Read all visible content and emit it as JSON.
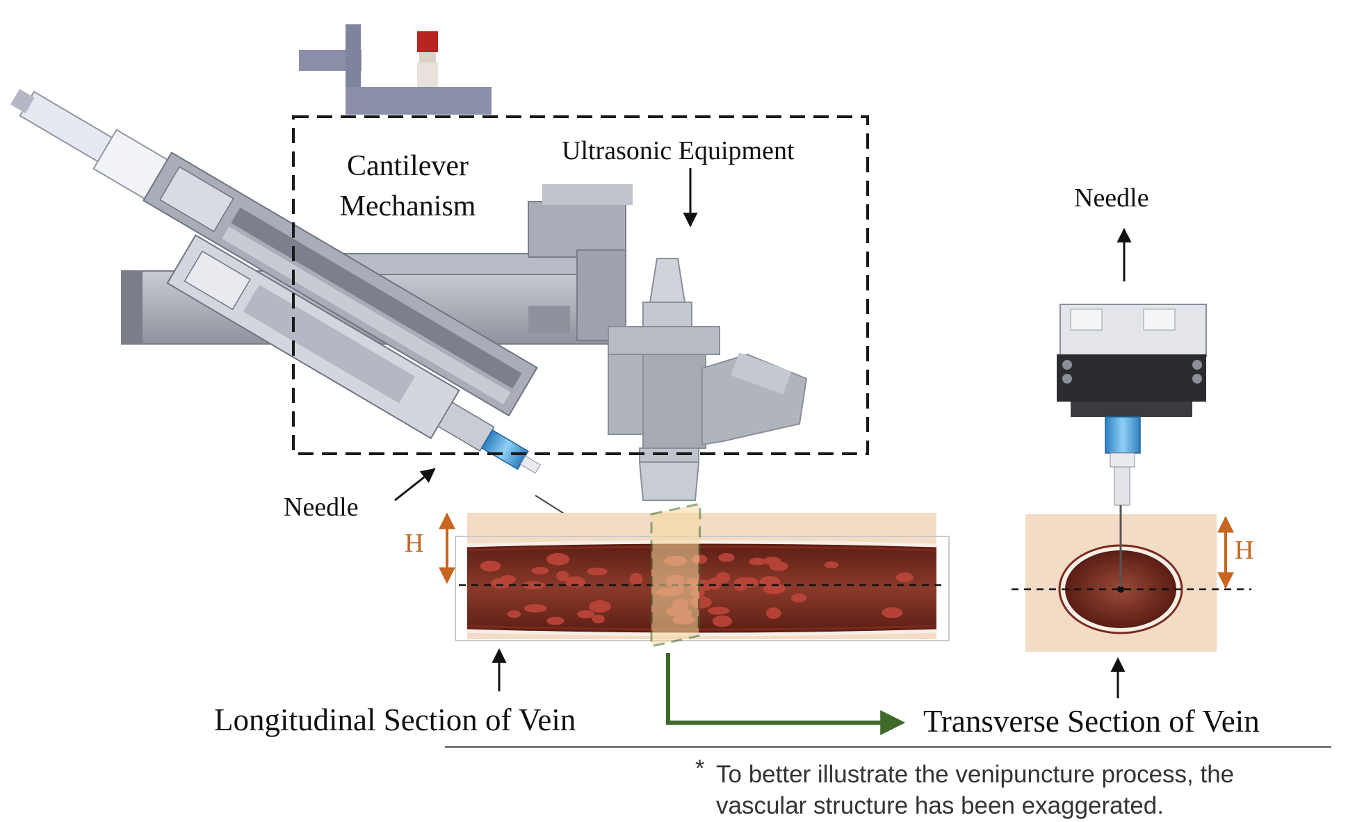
{
  "labels": {
    "cantilever": "Cantilever Mechanism",
    "ultrasonic": "Ultrasonic Equipment",
    "needle_left": "Needle",
    "needle_right": "Needle",
    "h_left": "H",
    "h_right": "H",
    "longitudinal": "Longitudinal Section of Vein",
    "transverse": "Transverse Section of Vein"
  },
  "footnote": {
    "star": "*",
    "line1": "To better illustrate the venipuncture process, the",
    "line2": "vascular structure has been exaggerated."
  },
  "colors": {
    "dashed_box": "#1a1a1a",
    "tissue": "#f3dcc5",
    "vein_dark": "#6e2418",
    "vein_wall": "#f6efe8",
    "blood_cell": "#c1473c",
    "h_marker": "#c8651f",
    "transfer_arrow": "#3f6a2a",
    "needle_hub": "#4fa3dc",
    "machine_gray": "#9fa3ad"
  }
}
